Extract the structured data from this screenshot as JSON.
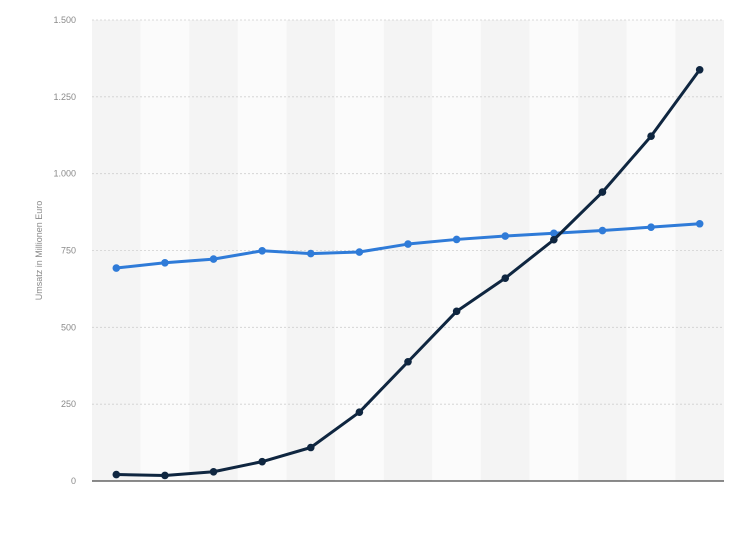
{
  "chart_data": {
    "type": "line",
    "ylabel": "Umsatz in Millionen Euro",
    "xlabel": "",
    "ylim": [
      0,
      1500
    ],
    "yticks": [
      0,
      250,
      500,
      750,
      1000,
      1250,
      1500
    ],
    "ytick_labels": [
      "0",
      "250",
      "500",
      "750",
      "1.000",
      "1.250",
      "1.500"
    ],
    "grid": true,
    "legend": "none",
    "series": [
      {
        "color": "#2f7bd8",
        "values": [
          693,
          710,
          722,
          749,
          740,
          745,
          771,
          786,
          797,
          806,
          815,
          826,
          837
        ]
      },
      {
        "color": "#0f2640",
        "values": [
          21,
          18,
          30,
          63,
          109,
          224,
          388,
          552,
          660,
          785,
          940,
          1122,
          1338
        ]
      }
    ]
  }
}
